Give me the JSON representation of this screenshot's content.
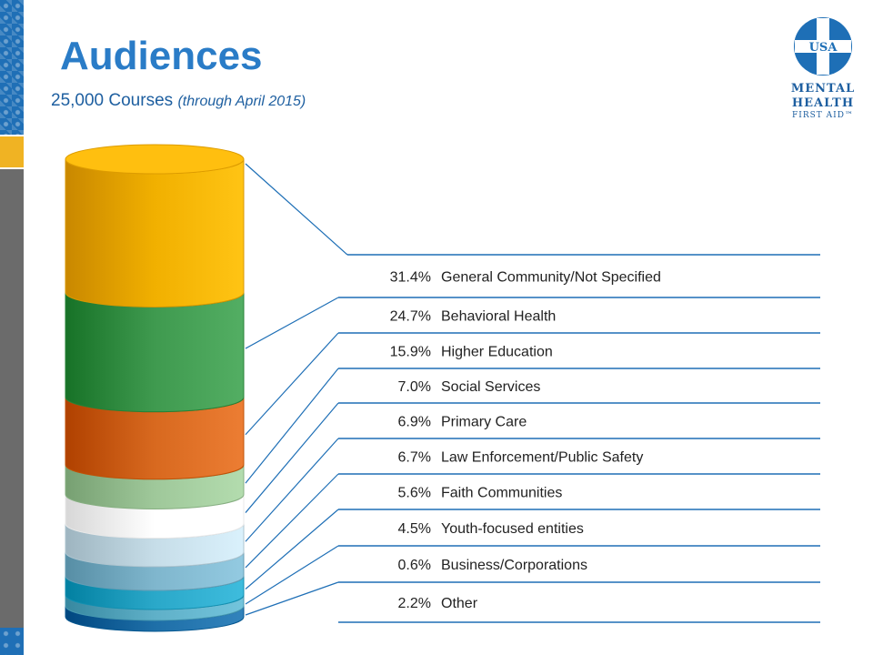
{
  "title": "Audiences",
  "subtitle": {
    "main": "25,000 Courses",
    "note": "(through April 2015)"
  },
  "logo": {
    "circle_text": "USA",
    "line1": "MENTAL",
    "line2": "HEALTH",
    "line3": "FIRST AID™"
  },
  "chart_data": {
    "type": "stacked-cylinder",
    "title": "Audiences",
    "subtitle": "25,000 Courses (through April 2015)",
    "series": [
      {
        "label": "General Community/Not Specified",
        "value": 31.4,
        "value_text": "31.4%",
        "color": "#f1b000"
      },
      {
        "label": "Behavioral Health",
        "value": 24.7,
        "value_text": "24.7%",
        "color": "#3f9a4f"
      },
      {
        "label": "Higher Education",
        "value": 15.9,
        "value_text": "15.9%",
        "color": "#d8691f"
      },
      {
        "label": "Social Services",
        "value": 7.0,
        "value_text": "7.0%",
        "color": "#9fc89a"
      },
      {
        "label": "Primary Care",
        "value": 6.9,
        "value_text": "6.9%",
        "color": "#ffffff"
      },
      {
        "label": "Law Enforcement/Public Safety",
        "value": 6.7,
        "value_text": "6.7%",
        "color": "#c6dde8"
      },
      {
        "label": "Faith Communities",
        "value": 5.6,
        "value_text": "5.6%",
        "color": "#7fb6cd"
      },
      {
        "label": "Youth-focused entities",
        "value": 4.5,
        "value_text": "4.5%",
        "color": "#2aa8c9"
      },
      {
        "label": "Business/Corporations",
        "value": 0.6,
        "value_text": "0.6%",
        "color": "#5fb0c8"
      },
      {
        "label": "Other",
        "value": 2.2,
        "value_text": "2.2%",
        "color": "#1e6fa8"
      }
    ]
  }
}
